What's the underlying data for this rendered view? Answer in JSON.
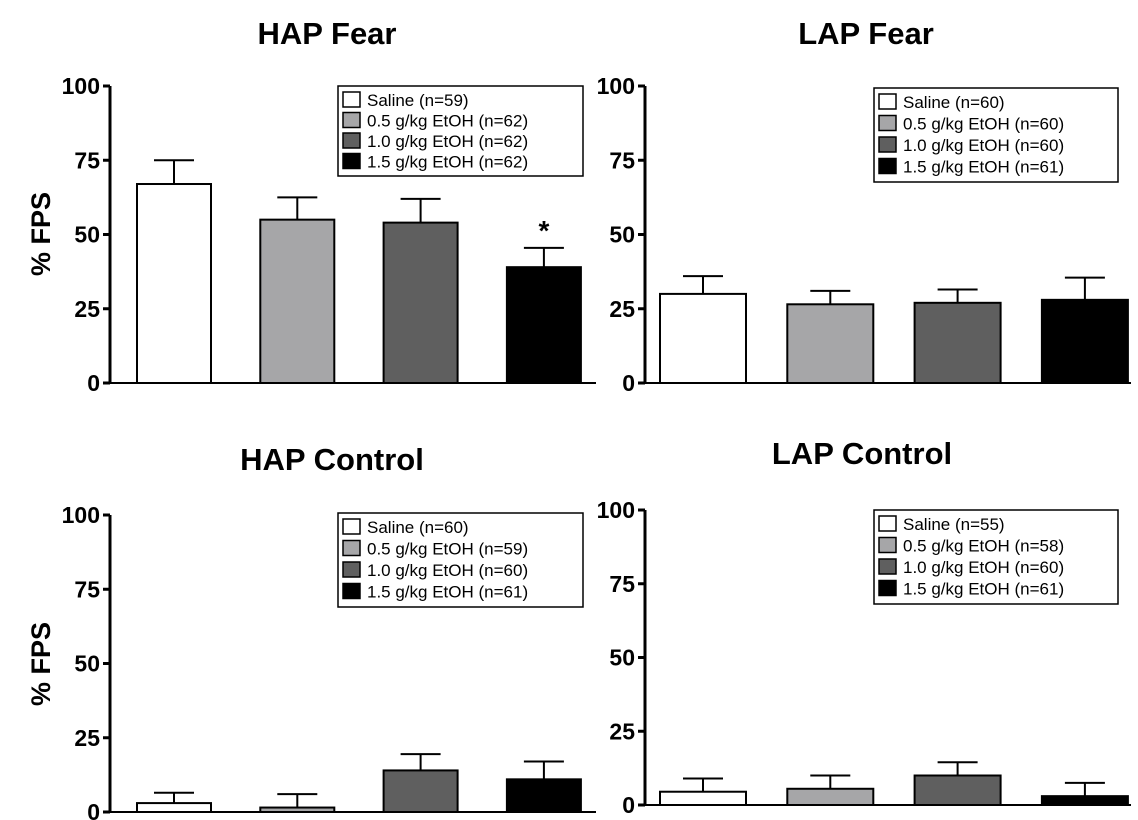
{
  "chart_data": [
    {
      "type": "bar",
      "title": "HAP Fear",
      "ylabel": "% FPS",
      "ylim": [
        0,
        100
      ],
      "yticks": [
        0,
        25,
        50,
        75,
        100
      ],
      "categories": [
        "Saline",
        "0.5 g/kg EtOH",
        "1.0 g/kg EtOH",
        "1.5 g/kg EtOH"
      ],
      "values": [
        67,
        55,
        54,
        39
      ],
      "errors": [
        8,
        7.5,
        8,
        6.5
      ],
      "annotations": [
        "",
        "",
        "",
        "*"
      ],
      "legend": [
        "Saline (n=59)",
        "0.5 g/kg EtOH (n=62)",
        "1.0 g/kg EtOH (n=62)",
        "1.5 g/kg EtOH (n=62)"
      ],
      "legend_position": "top-right"
    },
    {
      "type": "bar",
      "title": "LAP Fear",
      "ylabel": "",
      "ylim": [
        0,
        100
      ],
      "yticks": [
        0,
        25,
        50,
        75,
        100
      ],
      "categories": [
        "Saline",
        "0.5 g/kg EtOH",
        "1.0 g/kg EtOH",
        "1.5 g/kg EtOH"
      ],
      "values": [
        30,
        26.5,
        27,
        28
      ],
      "errors": [
        6,
        4.5,
        4.5,
        7.5
      ],
      "annotations": [
        "",
        "",
        "",
        ""
      ],
      "legend": [
        "Saline (n=60)",
        "0.5 g/kg EtOH (n=60)",
        "1.0 g/kg EtOH (n=60)",
        "1.5 g/kg EtOH (n=61)"
      ],
      "legend_position": "top-right"
    },
    {
      "type": "bar",
      "title": "HAP Control",
      "ylabel": "% FPS",
      "ylim": [
        0,
        100
      ],
      "yticks": [
        0,
        25,
        50,
        75,
        100
      ],
      "categories": [
        "Saline",
        "0.5 g/kg EtOH",
        "1.0 g/kg EtOH",
        "1.5 g/kg EtOH"
      ],
      "values": [
        3,
        1.5,
        14,
        11
      ],
      "errors": [
        3.5,
        4.5,
        5.5,
        6
      ],
      "annotations": [
        "",
        "",
        "",
        ""
      ],
      "legend": [
        "Saline (n=60)",
        "0.5 g/kg EtOH (n=59)",
        "1.0 g/kg EtOH (n=60)",
        "1.5 g/kg EtOH (n=61)"
      ],
      "legend_position": "top-right"
    },
    {
      "type": "bar",
      "title": "LAP Control",
      "ylabel": "",
      "ylim": [
        0,
        100
      ],
      "yticks": [
        0,
        25,
        50,
        75,
        100
      ],
      "categories": [
        "Saline",
        "0.5 g/kg EtOH",
        "1.0 g/kg EtOH",
        "1.5 g/kg EtOH"
      ],
      "values": [
        4.5,
        5.5,
        10,
        3
      ],
      "errors": [
        4.5,
        4.5,
        4.5,
        4.5
      ],
      "annotations": [
        "",
        "",
        "",
        ""
      ],
      "legend": [
        "Saline (n=55)",
        "0.5 g/kg EtOH (n=58)",
        "1.0 g/kg EtOH (n=60)",
        "1.5 g/kg EtOH (n=61)"
      ],
      "legend_position": "top-right"
    }
  ],
  "colors": {
    "series": [
      "#ffffff",
      "#a6a6a8",
      "#5f5f5f",
      "#000000"
    ],
    "stroke": "#000000"
  }
}
